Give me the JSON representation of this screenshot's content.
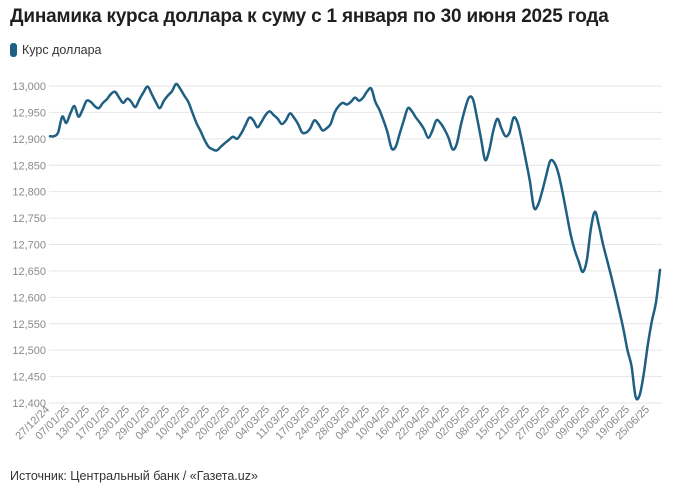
{
  "title": "Динамика курса доллара к суму с 1 января по 30 июня 2025 года",
  "source": "Источник: Центральный банк / «Газета.uz»",
  "colors": {
    "line": "#1f5f82",
    "grid": "#e6e6e6",
    "tick_text": "#8a8a8a"
  },
  "chart_data": {
    "type": "line",
    "title": "Динамика курса доллара к суму с 1 января по 30 июня 2025 года",
    "xlabel": "",
    "ylabel": "",
    "ylim": [
      12400,
      13000
    ],
    "grid": true,
    "legend_placement": "top-left",
    "y_ticks": [
      "13,000",
      "12,950",
      "12,900",
      "12,850",
      "12,800",
      "12,750",
      "12,700",
      "12,650",
      "12,600",
      "12,550",
      "12,500",
      "12,450",
      "12,400"
    ],
    "x_ticks": [
      "27/12/24",
      "07/01/25",
      "13/01/25",
      "17/01/25",
      "23/01/25",
      "29/01/25",
      "04/02/25",
      "10/02/25",
      "14/02/25",
      "20/02/25",
      "26/02/25",
      "04/03/25",
      "11/03/25",
      "17/03/25",
      "24/03/25",
      "28/03/25",
      "04/04/25",
      "10/04/25",
      "16/04/25",
      "22/04/25",
      "28/04/25",
      "02/05/25",
      "08/05/25",
      "15/05/25",
      "21/05/25",
      "27/05/25",
      "02/06/25",
      "09/06/25",
      "13/06/25",
      "19/06/25",
      "25/06/25"
    ],
    "series": [
      {
        "name": "Курс доллара",
        "values": [
          12905,
          12905,
          12912,
          12942,
          12930,
          12948,
          12962,
          12942,
          12955,
          12972,
          12970,
          12962,
          12958,
          12968,
          12975,
          12985,
          12989,
          12978,
          12968,
          12976,
          12970,
          12960,
          12975,
          12988,
          12999,
          12985,
          12970,
          12958,
          12972,
          12982,
          12990,
          13004,
          12995,
          12982,
          12970,
          12950,
          12930,
          12915,
          12898,
          12885,
          12880,
          12878,
          12885,
          12892,
          12898,
          12904,
          12900,
          12910,
          12925,
          12940,
          12935,
          12922,
          12932,
          12945,
          12952,
          12945,
          12938,
          12928,
          12935,
          12948,
          12940,
          12928,
          12912,
          12912,
          12920,
          12935,
          12928,
          12916,
          12920,
          12928,
          12950,
          12962,
          12968,
          12965,
          12970,
          12978,
          12972,
          12978,
          12990,
          12995,
          12970,
          12955,
          12935,
          12912,
          12882,
          12885,
          12910,
          12935,
          12958,
          12952,
          12940,
          12930,
          12918,
          12902,
          12915,
          12935,
          12930,
          12918,
          12902,
          12880,
          12890,
          12925,
          12955,
          12978,
          12975,
          12940,
          12900,
          12860,
          12878,
          12915,
          12938,
          12920,
          12905,
          12912,
          12940,
          12930,
          12898,
          12860,
          12820,
          12770,
          12775,
          12800,
          12830,
          12858,
          12855,
          12835,
          12800,
          12760,
          12720,
          12690,
          12668,
          12648,
          12670,
          12730,
          12762,
          12735,
          12700,
          12670,
          12640,
          12608,
          12575,
          12540,
          12500,
          12470,
          12412,
          12415,
          12455,
          12510,
          12555,
          12590,
          12652
        ]
      }
    ]
  }
}
